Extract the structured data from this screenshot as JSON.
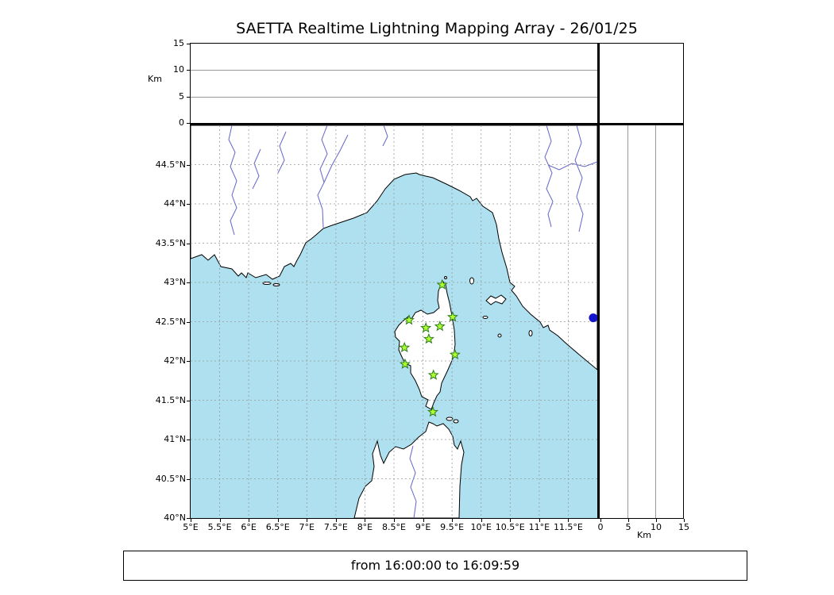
{
  "title": "SAETTA Realtime Lightning Mapping Array - 26/01/25",
  "status_bar": {
    "text": "from 16:00:00 to 16:09:59"
  },
  "altitude_axis": {
    "label": "Km",
    "ticks": [
      0,
      5,
      10,
      15
    ],
    "gridlines": [
      5,
      10
    ],
    "max": 15
  },
  "map": {
    "lon_min": 5,
    "lon_max": 12,
    "lat_min": 40,
    "lat_max": 45,
    "lon_ticks": [
      {
        "v": 5,
        "label": "5°E"
      },
      {
        "v": 5.5,
        "label": "5.5°E"
      },
      {
        "v": 6,
        "label": "6°E"
      },
      {
        "v": 6.5,
        "label": "6.5°E"
      },
      {
        "v": 7,
        "label": "7°E"
      },
      {
        "v": 7.5,
        "label": "7.5°E"
      },
      {
        "v": 8,
        "label": "8°E"
      },
      {
        "v": 8.5,
        "label": "8.5°E"
      },
      {
        "v": 9,
        "label": "9°E"
      },
      {
        "v": 9.5,
        "label": "9.5°E"
      },
      {
        "v": 10,
        "label": "10°E"
      },
      {
        "v": 10.5,
        "label": "10.5°E"
      },
      {
        "v": 11,
        "label": "11°E"
      },
      {
        "v": 11.5,
        "label": "11.5°E"
      }
    ],
    "lat_ticks": [
      {
        "v": 44.5,
        "label": "44.5°N"
      },
      {
        "v": 44,
        "label": "44°N"
      },
      {
        "v": 43.5,
        "label": "43.5°N"
      },
      {
        "v": 43,
        "label": "43°N"
      },
      {
        "v": 42.5,
        "label": "42.5°N"
      },
      {
        "v": 42,
        "label": "42°N"
      },
      {
        "v": 41.5,
        "label": "41.5°N"
      },
      {
        "v": 41,
        "label": "41°N"
      },
      {
        "v": 40.5,
        "label": "40.5°N"
      },
      {
        "v": 40,
        "label": "40°N"
      }
    ],
    "grid_lons": [
      5.5,
      6,
      6.5,
      7,
      7.5,
      8,
      8.5,
      9,
      9.5,
      10,
      10.5,
      11,
      11.5
    ],
    "grid_lats": [
      40.5,
      41,
      41.5,
      42,
      42.5,
      43,
      43.5,
      44,
      44.5
    ],
    "colors": {
      "sea": "#aee0ef",
      "land": "#ffffff",
      "coast": "#000000",
      "river": "#6464c8",
      "grid": "#999999",
      "station_fill": "#adff2f",
      "station_edge": "#2d7a1f",
      "marker": "#1414cc"
    },
    "stations": [
      {
        "lon": 9.33,
        "lat": 42.97
      },
      {
        "lon": 8.76,
        "lat": 42.52
      },
      {
        "lon": 9.05,
        "lat": 42.42
      },
      {
        "lon": 9.29,
        "lat": 42.44
      },
      {
        "lon": 9.51,
        "lat": 42.56
      },
      {
        "lon": 9.1,
        "lat": 42.28
      },
      {
        "lon": 8.68,
        "lat": 42.17
      },
      {
        "lon": 9.55,
        "lat": 42.08
      },
      {
        "lon": 8.69,
        "lat": 41.96
      },
      {
        "lon": 9.18,
        "lat": 41.82
      },
      {
        "lon": 9.17,
        "lat": 41.35
      }
    ],
    "marker": {
      "lon": 11.93,
      "lat": 42.55
    }
  },
  "chart_data": {
    "type": "scatter",
    "title": "SAETTA Realtime Lightning Mapping Array - 26/01/25",
    "panels": [
      {
        "name": "altitude_vs_longitude",
        "xlim": [
          5,
          12
        ],
        "ylim": [
          0,
          15
        ],
        "ylabel": "Km",
        "grid": true,
        "points": []
      },
      {
        "name": "map_lon_lat",
        "xlim": [
          5,
          12
        ],
        "ylim": [
          40,
          45
        ],
        "grid": true,
        "points": []
      },
      {
        "name": "altitude_vs_latitude",
        "xlim": [
          0,
          15
        ],
        "ylim": [
          40,
          45
        ],
        "xlabel": "Km",
        "grid": true,
        "points": []
      }
    ]
  }
}
